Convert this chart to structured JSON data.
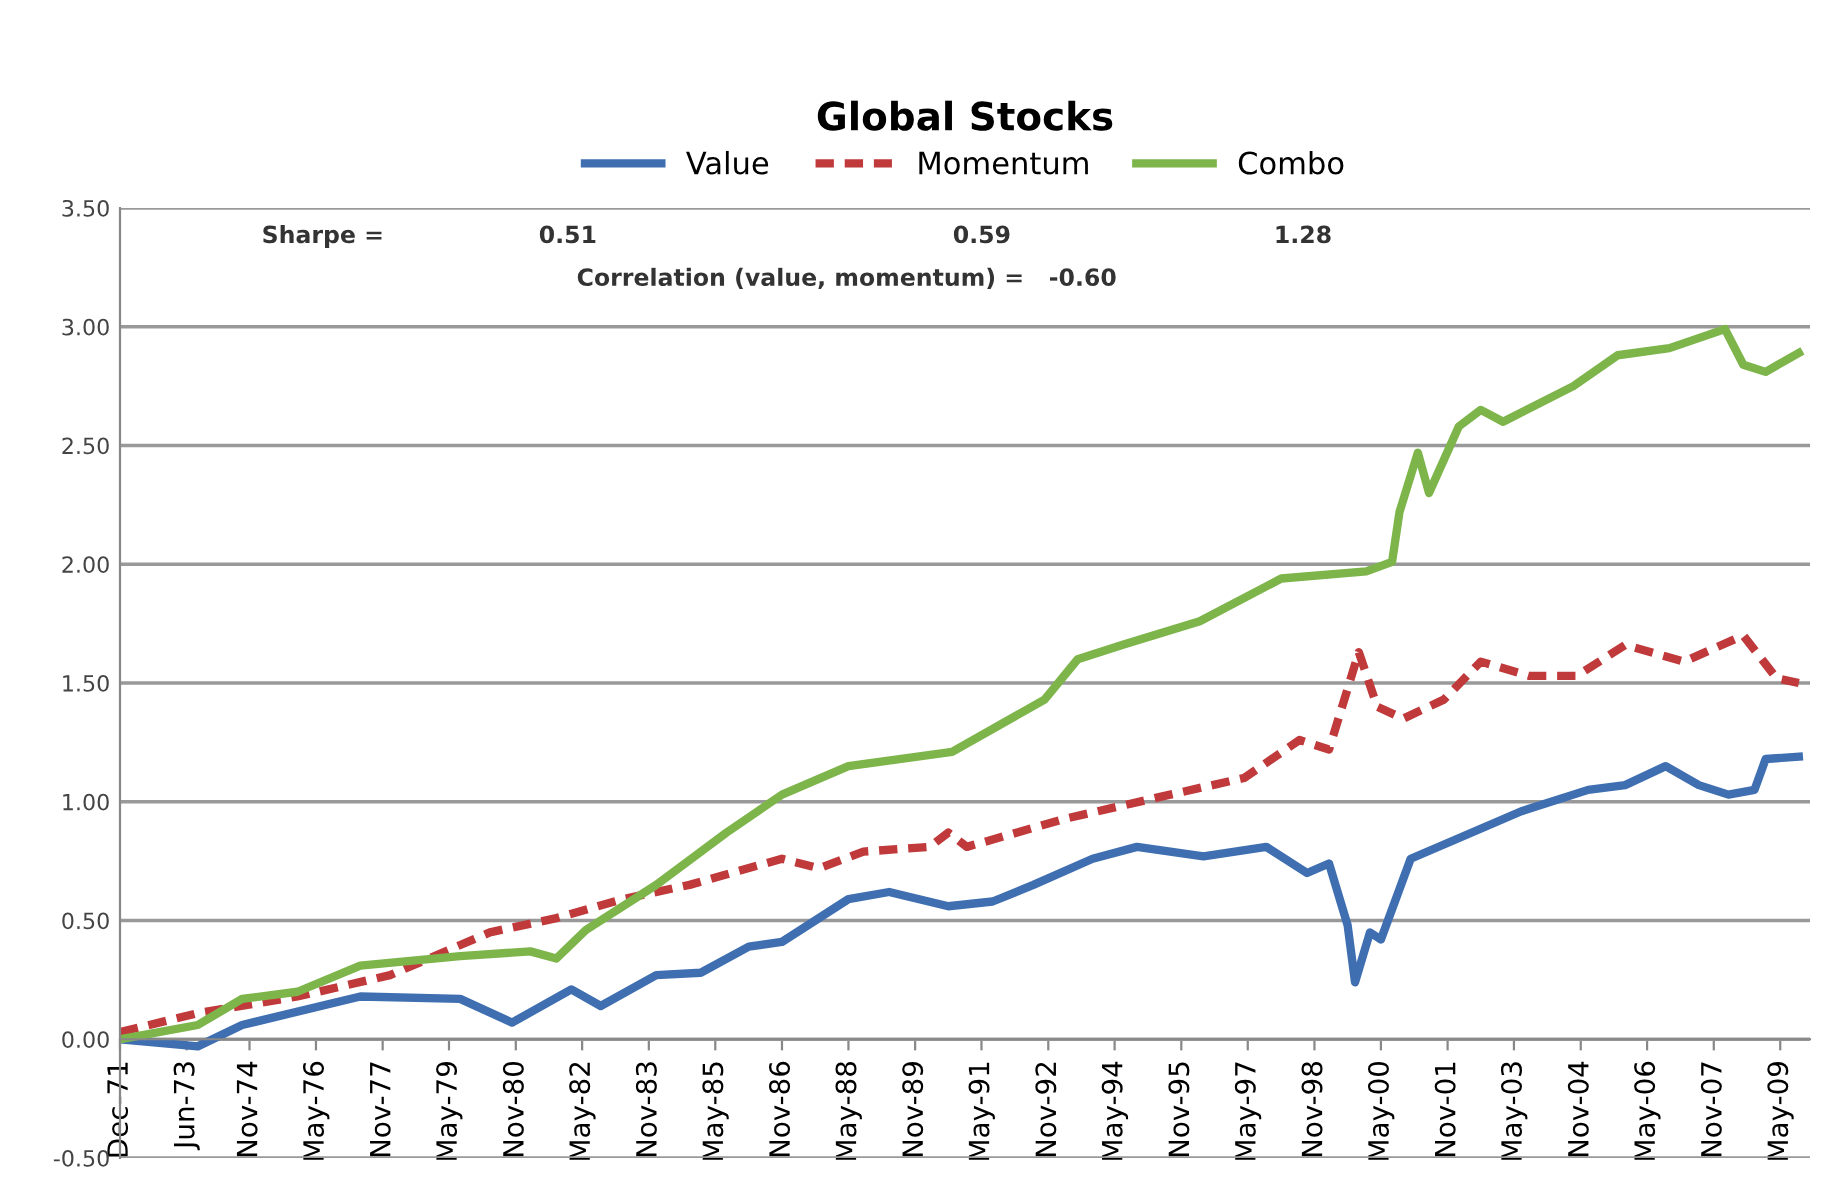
{
  "chart_data": {
    "type": "line",
    "title": "Global Stocks",
    "annotations": [
      "Sharpe =",
      "0.51",
      "0.59",
      "1.28",
      "Correlation (value, momentum) =   -0.60"
    ],
    "series": [
      {
        "name": "Value",
        "color": "#3f6fb1",
        "line_style": "solid",
        "x": [
          "1971-12",
          "1973-09",
          "1974-09",
          "1977-05",
          "1979-08",
          "1980-10",
          "1982-02",
          "1982-10",
          "1984-01",
          "1985-01",
          "1986-02",
          "1986-11",
          "1988-05",
          "1989-04",
          "1990-08",
          "1991-08",
          "1992-07",
          "1993-11",
          "1994-11",
          "1996-05",
          "1997-10",
          "1998-09",
          "1999-03",
          "1999-08",
          "1999-10",
          "2000-02",
          "2000-05",
          "2001-01",
          "2002-01",
          "2003-07",
          "2005-01",
          "2005-11",
          "2006-10",
          "2007-07",
          "2008-03",
          "2008-10",
          "2009-01",
          "2009-10"
        ],
        "values": [
          0,
          -0.03,
          0.06,
          0.18,
          0.17,
          0.07,
          0.21,
          0.14,
          0.27,
          0.28,
          0.39,
          0.41,
          0.59,
          0.62,
          0.56,
          0.58,
          0.65,
          0.76,
          0.81,
          0.77,
          0.81,
          0.7,
          0.74,
          0.48,
          0.24,
          0.45,
          0.42,
          0.76,
          0.84,
          0.96,
          1.05,
          1.07,
          1.15,
          1.07,
          1.03,
          1.05,
          1.18,
          1.19
        ]
      },
      {
        "name": "Momentum",
        "color": "#c0393b",
        "line_style": "dashed",
        "x": [
          "1971-12",
          "1973-09",
          "1975-12",
          "1978-01",
          "1980-04",
          "1981-10",
          "1983-04",
          "1984-10",
          "1986-11",
          "1987-09",
          "1988-09",
          "1990-03",
          "1990-08",
          "1991-01",
          "1993-04",
          "1995-08",
          "1997-04",
          "1998-07",
          "1999-03",
          "1999-11",
          "2000-04",
          "2000-11",
          "2001-10",
          "2002-08",
          "2003-09",
          "2004-10",
          "2005-11",
          "2007-03",
          "2008-07",
          "2009-04",
          "2009-10"
        ],
        "values": [
          0.03,
          0.11,
          0.18,
          0.27,
          0.45,
          0.51,
          0.59,
          0.65,
          0.76,
          0.72,
          0.79,
          0.81,
          0.87,
          0.81,
          0.93,
          1.03,
          1.1,
          1.26,
          1.22,
          1.63,
          1.4,
          1.35,
          1.43,
          1.59,
          1.53,
          1.53,
          1.66,
          1.59,
          1.7,
          1.52,
          1.5
        ]
      },
      {
        "name": "Combo",
        "color": "#7db54b",
        "line_style": "solid",
        "x": [
          "1971-12",
          "1973-09",
          "1974-09",
          "1975-12",
          "1977-05",
          "1979-08",
          "1981-03",
          "1981-10",
          "1982-06",
          "1984-01",
          "1985-08",
          "1986-11",
          "1988-05",
          "1990-09",
          "1992-10",
          "1993-07",
          "1994-07",
          "1996-04",
          "1998-02",
          "2000-01",
          "2000-08",
          "2000-10",
          "2001-03",
          "2001-06",
          "2002-02",
          "2002-08",
          "2003-02",
          "2004-09",
          "2005-09",
          "2006-11",
          "2008-02",
          "2008-07",
          "2009-01",
          "2009-10"
        ],
        "values": [
          0,
          0.06,
          0.17,
          0.2,
          0.31,
          0.35,
          0.37,
          0.34,
          0.46,
          0.65,
          0.87,
          1.03,
          1.15,
          1.21,
          1.43,
          1.6,
          1.66,
          1.76,
          1.94,
          1.97,
          2.01,
          2.22,
          2.47,
          2.3,
          2.58,
          2.65,
          2.6,
          2.75,
          2.88,
          2.91,
          2.99,
          2.84,
          2.81,
          2.89
        ]
      }
    ],
    "xlim": [
      "1971-12",
      "2010-01"
    ],
    "xticks": [
      {
        "value": "1971-12",
        "label": "Dec-71"
      },
      {
        "value": "1973-06",
        "label": "Jun-73"
      },
      {
        "value": "1974-11",
        "label": "Nov-74"
      },
      {
        "value": "1976-05",
        "label": "May-76"
      },
      {
        "value": "1977-11",
        "label": "Nov-77"
      },
      {
        "value": "1979-05",
        "label": "May-79"
      },
      {
        "value": "1980-11",
        "label": "Nov-80"
      },
      {
        "value": "1982-05",
        "label": "May-82"
      },
      {
        "value": "1983-11",
        "label": "Nov-83"
      },
      {
        "value": "1985-05",
        "label": "May-85"
      },
      {
        "value": "1986-11",
        "label": "Nov-86"
      },
      {
        "value": "1988-05",
        "label": "May-88"
      },
      {
        "value": "1989-11",
        "label": "Nov-89"
      },
      {
        "value": "1991-05",
        "label": "May-91"
      },
      {
        "value": "1992-11",
        "label": "Nov-92"
      },
      {
        "value": "1994-05",
        "label": "May-94"
      },
      {
        "value": "1995-11",
        "label": "Nov-95"
      },
      {
        "value": "1997-05",
        "label": "May-97"
      },
      {
        "value": "1998-11",
        "label": "Nov-98"
      },
      {
        "value": "2000-05",
        "label": "May-00"
      },
      {
        "value": "2001-11",
        "label": "Nov-01"
      },
      {
        "value": "2003-05",
        "label": "May-03"
      },
      {
        "value": "2004-11",
        "label": "Nov-04"
      },
      {
        "value": "2006-05",
        "label": "May-06"
      },
      {
        "value": "2007-11",
        "label": "Nov-07"
      },
      {
        "value": "2009-05",
        "label": "May-09"
      }
    ],
    "ylim": [
      -0.5,
      3.5
    ],
    "yticks": [
      {
        "value": -0.5,
        "label": "-0.50"
      },
      {
        "value": 0,
        "label": "0.00"
      },
      {
        "value": 0.5,
        "label": "0.50"
      },
      {
        "value": 1,
        "label": "1.00"
      },
      {
        "value": 1.5,
        "label": "1.50"
      },
      {
        "value": 2,
        "label": "2.00"
      },
      {
        "value": 2.5,
        "label": "2.50"
      },
      {
        "value": 3,
        "label": "3.00"
      },
      {
        "value": 3.5,
        "label": "3.50"
      }
    ],
    "grid": "y",
    "legend": "top",
    "marker": "none"
  }
}
